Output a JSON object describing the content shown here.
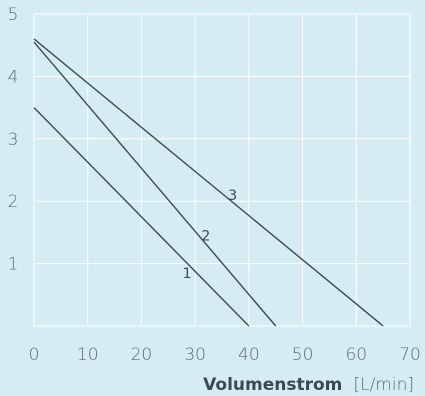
{
  "chart_data": {
    "type": "line",
    "title": "",
    "xlabel": "Volumenstrom",
    "xunit": "[L/min]",
    "ylabel": "",
    "xlim": [
      0,
      70
    ],
    "ylim": [
      0,
      5
    ],
    "xticks": [
      "0",
      "10",
      "20",
      "30",
      "40",
      "50",
      "60",
      "70"
    ],
    "yticks": [
      "1",
      "2",
      "3",
      "4",
      "5"
    ],
    "grid": true,
    "series": [
      {
        "name": "1",
        "x": [
          0,
          40
        ],
        "y": [
          3.5,
          0
        ],
        "label_at": [
          28.5,
          0.85
        ]
      },
      {
        "name": "2",
        "x": [
          0,
          45
        ],
        "y": [
          4.55,
          0
        ],
        "label_at": [
          32,
          1.45
        ]
      },
      {
        "name": "3",
        "x": [
          0,
          65
        ],
        "y": [
          4.6,
          0
        ],
        "label_at": [
          37,
          2.1
        ]
      }
    ]
  },
  "colors": {
    "background": "#d6ecf3",
    "grid": "#ffffff",
    "line": "#3b4a52",
    "text": "#5a6b73"
  }
}
